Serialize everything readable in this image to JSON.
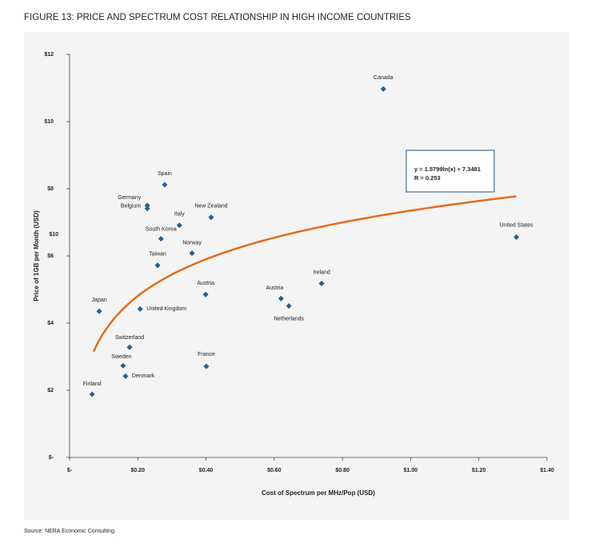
{
  "chart_data": {
    "type": "scatter",
    "title": "FIGURE 13: PRICE AND SPECTRUM COST RELATIONSHIP IN HIGH INCOME COUNTRIES",
    "x_label": "Cost of Spectrum per MHz/Pop (USD)",
    "y_label": "Price of 1GB per Month (USD)",
    "source": "Source: NERA Economic Consulting.",
    "stray_label": "$10",
    "equation": "y = 1.5799ln(x) + 7.3481",
    "r_text": "R = 0.253",
    "trendline": {
      "a": 1.5799,
      "b": 7.3481,
      "x_range": [
        0.07,
        1.31
      ],
      "color": "#e36c1c"
    },
    "color": "#1f5f9e",
    "xlim": [
      0,
      1.4
    ],
    "ylim": [
      0,
      12
    ],
    "xticks": [
      {
        "value": 0,
        "label": "$-"
      },
      {
        "value": 0.2,
        "label": "$0.20"
      },
      {
        "value": 0.4,
        "label": "$0.40"
      },
      {
        "value": 0.6,
        "label": "$0.60"
      },
      {
        "value": 0.8,
        "label": "$0.80"
      },
      {
        "value": 1.0,
        "label": "$1.00"
      },
      {
        "value": 1.2,
        "label": "$1.20"
      },
      {
        "value": 1.4,
        "label": "$1.40"
      }
    ],
    "yticks": [
      {
        "value": 0,
        "label": "$-"
      },
      {
        "value": 2,
        "label": "$2"
      },
      {
        "value": 4,
        "label": "$4"
      },
      {
        "value": 6,
        "label": "$6"
      },
      {
        "value": 8,
        "label": "$8"
      },
      {
        "value": 10,
        "label": "$10"
      },
      {
        "value": 12,
        "label": "$12"
      }
    ],
    "labels": [
      "Canada",
      "United States",
      "Spain",
      "Germany",
      "Belgium",
      "New Zealand",
      "Italy",
      "South Korea",
      "Norway",
      "Taiwan",
      "Austria",
      "Austria",
      "Netherlands",
      "Ireland",
      "Japan",
      "United Kingdom",
      "Switzerland",
      "Sweden",
      "Denmark",
      "France",
      "Finland"
    ],
    "x": [
      0.92,
      1.31,
      0.279,
      0.228,
      0.228,
      0.415,
      0.322,
      0.268,
      0.359,
      0.258,
      0.399,
      0.62,
      0.643,
      0.739,
      0.087,
      0.207,
      0.176,
      0.157,
      0.164,
      0.401,
      0.066
    ],
    "values": [
      10.97,
      6.56,
      8.12,
      7.5,
      7.41,
      7.15,
      6.91,
      6.51,
      6.08,
      5.72,
      4.85,
      4.73,
      4.51,
      5.18,
      4.35,
      4.42,
      3.28,
      2.73,
      2.42,
      2.71,
      1.88
    ]
  }
}
